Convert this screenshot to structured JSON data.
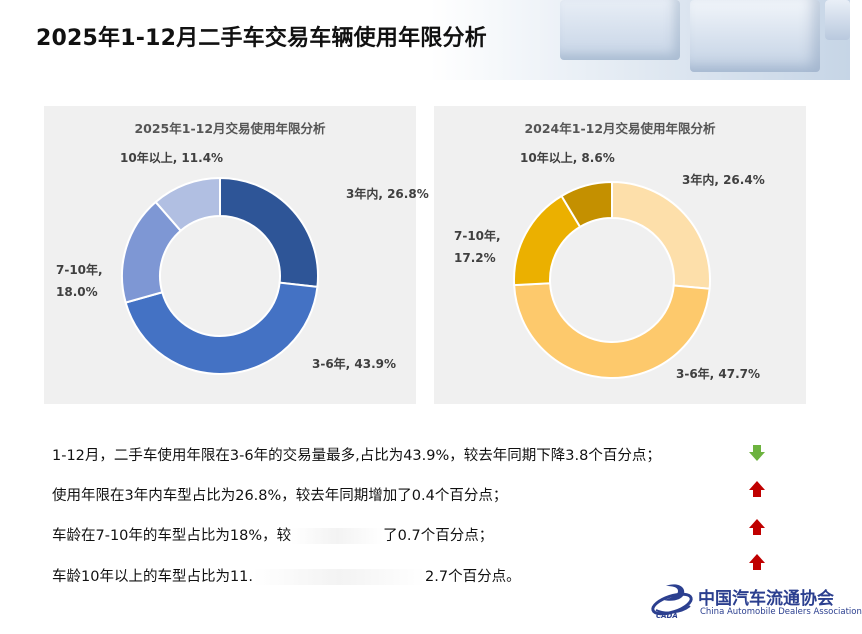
{
  "header": {
    "title": "2025年1-12月二手车交易车辆使用年限分析"
  },
  "chart_data": [
    {
      "type": "pie",
      "title": "2025年1-12月交易使用年限分析",
      "categories": [
        "3年内",
        "3-6年",
        "7-10年",
        "10年以上"
      ],
      "values": [
        26.8,
        43.9,
        18.0,
        11.4
      ],
      "labels": [
        "3年内, 26.8%",
        "3-6年, 43.9%",
        "7-10年,",
        "18.0%",
        "10年以上, 11.4%"
      ],
      "colors": [
        "#2e5597",
        "#4472c4",
        "#7e97d4",
        "#b1bfe2"
      ],
      "donut": true
    },
    {
      "type": "pie",
      "title": "2024年1-12月交易使用年限分析",
      "categories": [
        "3年内",
        "3-6年",
        "7-10年",
        "10年以上"
      ],
      "values": [
        26.4,
        47.7,
        17.2,
        8.6
      ],
      "labels": [
        "3年内, 26.4%",
        "3-6年, 47.7%",
        "7-10年,",
        "17.2%",
        "10年以上, 8.6%"
      ],
      "colors": [
        "#fddfaa",
        "#fdc96c",
        "#ebb000",
        "#c49000"
      ],
      "donut": true
    }
  ],
  "summary": {
    "lines": [
      {
        "text": "1-12月，二手车使用年限在3-6年的交易量最多,占比为43.9%，较去年同期下降3.8个百分点；",
        "trend": "down"
      },
      {
        "text": "使用年限在3年内车型占比为26.8%，较去年同期增加了0.4个百分点；",
        "trend": "up"
      },
      {
        "text_before": "车龄在7-10年的车型占比为18%，较",
        "text_after": "了0.7个百分点；",
        "trend": "up"
      },
      {
        "text_before": "车龄10年以上的车型占比为11.",
        "text_after": "2.7个百分点。",
        "trend": "up"
      }
    ],
    "colors": {
      "down": "#6db33f",
      "up": "#c00000"
    }
  },
  "footer": {
    "org_cn": "中国汽车流通协会",
    "org_en": "China Automobile Dealers Association",
    "org_abbr": "CADA"
  }
}
